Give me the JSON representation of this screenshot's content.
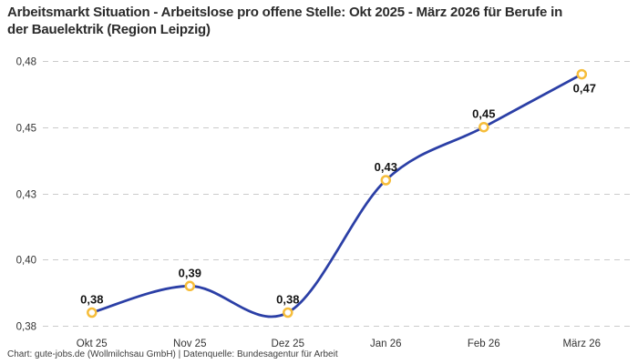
{
  "footer": {
    "attribution": "Chart: gute-jobs.de (Wollmilchsau GmbH) | Datenquelle: Bundesagentur für Arbeit"
  },
  "chart_data": {
    "type": "line",
    "title": "Arbeitsmarkt Situation - Arbeitslose pro offene Stelle: Okt 2025 - März 2026 für Berufe in der Bauelektrik (Region Leipzig)",
    "categories": [
      "Okt 25",
      "Nov 25",
      "Dez 25",
      "Jan 26",
      "Feb 26",
      "März 26"
    ],
    "values": [
      0.38,
      0.39,
      0.38,
      0.43,
      0.45,
      0.47
    ],
    "point_labels": [
      "0,38",
      "0,39",
      "0,38",
      "0,43",
      "0,45",
      "0,47"
    ],
    "point_label_positions": [
      "above",
      "above",
      "above",
      "above",
      "above",
      "below"
    ],
    "y_ticks": [
      {
        "value": 0.375,
        "label": "0,38"
      },
      {
        "value": 0.4,
        "label": "0,40"
      },
      {
        "value": 0.425,
        "label": "0,43"
      },
      {
        "value": 0.45,
        "label": "0,45"
      },
      {
        "value": 0.475,
        "label": "0,48"
      }
    ],
    "ylim": [
      0.375,
      0.475
    ],
    "xlabel": "",
    "ylabel": "",
    "grid": true,
    "legend_position": "none",
    "smooth": true,
    "colors": {
      "line": "#2b3fa6",
      "marker_ring": "#f6bd3a",
      "marker_fill": "#ffffff",
      "grid": "#cbcbcb",
      "tick_text": "#333333",
      "point_label_text": "#141414",
      "title_text": "#2b2b2b"
    }
  }
}
